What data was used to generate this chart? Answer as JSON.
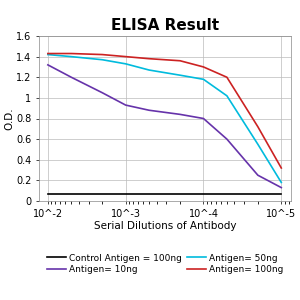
{
  "title": "ELISA Result",
  "ylabel": "O.D.",
  "xlabel": "Serial Dilutions of Antibody",
  "ylim": [
    0,
    1.6
  ],
  "yticks": [
    0,
    0.2,
    0.4,
    0.6,
    0.8,
    1.0,
    1.2,
    1.4,
    1.6
  ],
  "ytick_labels": [
    "0",
    "0.2",
    "0.4",
    "0.6",
    "0.8",
    "1",
    "1.2",
    "1.4",
    "1.6"
  ],
  "xtick_positions": [
    0.01,
    0.001,
    0.0001,
    1e-05
  ],
  "xtick_labels": [
    "10^-2",
    "10^-3",
    "10^-4",
    "10^-5"
  ],
  "x_values": [
    0.01,
    0.005,
    0.002,
    0.001,
    0.0005,
    0.0002,
    0.0001,
    5e-05,
    2e-05,
    1e-05
  ],
  "control_y": [
    0.07,
    0.07,
    0.07,
    0.07,
    0.07,
    0.07,
    0.07,
    0.07,
    0.07,
    0.07
  ],
  "antigen10_y": [
    1.32,
    1.2,
    1.05,
    0.93,
    0.88,
    0.84,
    0.8,
    0.6,
    0.25,
    0.13
  ],
  "antigen50_y": [
    1.42,
    1.4,
    1.37,
    1.33,
    1.27,
    1.22,
    1.18,
    1.02,
    0.55,
    0.18
  ],
  "antigen100_y": [
    1.43,
    1.43,
    1.42,
    1.4,
    1.38,
    1.36,
    1.3,
    1.2,
    0.72,
    0.32
  ],
  "control_color": "#000000",
  "antigen10_color": "#6633AA",
  "antigen50_color": "#00BBDD",
  "antigen100_color": "#CC2222",
  "legend_labels": [
    "Control Antigen = 100ng",
    "Antigen= 10ng",
    "Antigen= 50ng",
    "Antigen= 100ng"
  ],
  "background_color": "#ffffff",
  "grid_color": "#bbbbbb",
  "title_fontsize": 11,
  "label_fontsize": 7.5,
  "tick_fontsize": 7,
  "legend_fontsize": 6.5,
  "linewidth": 1.2
}
